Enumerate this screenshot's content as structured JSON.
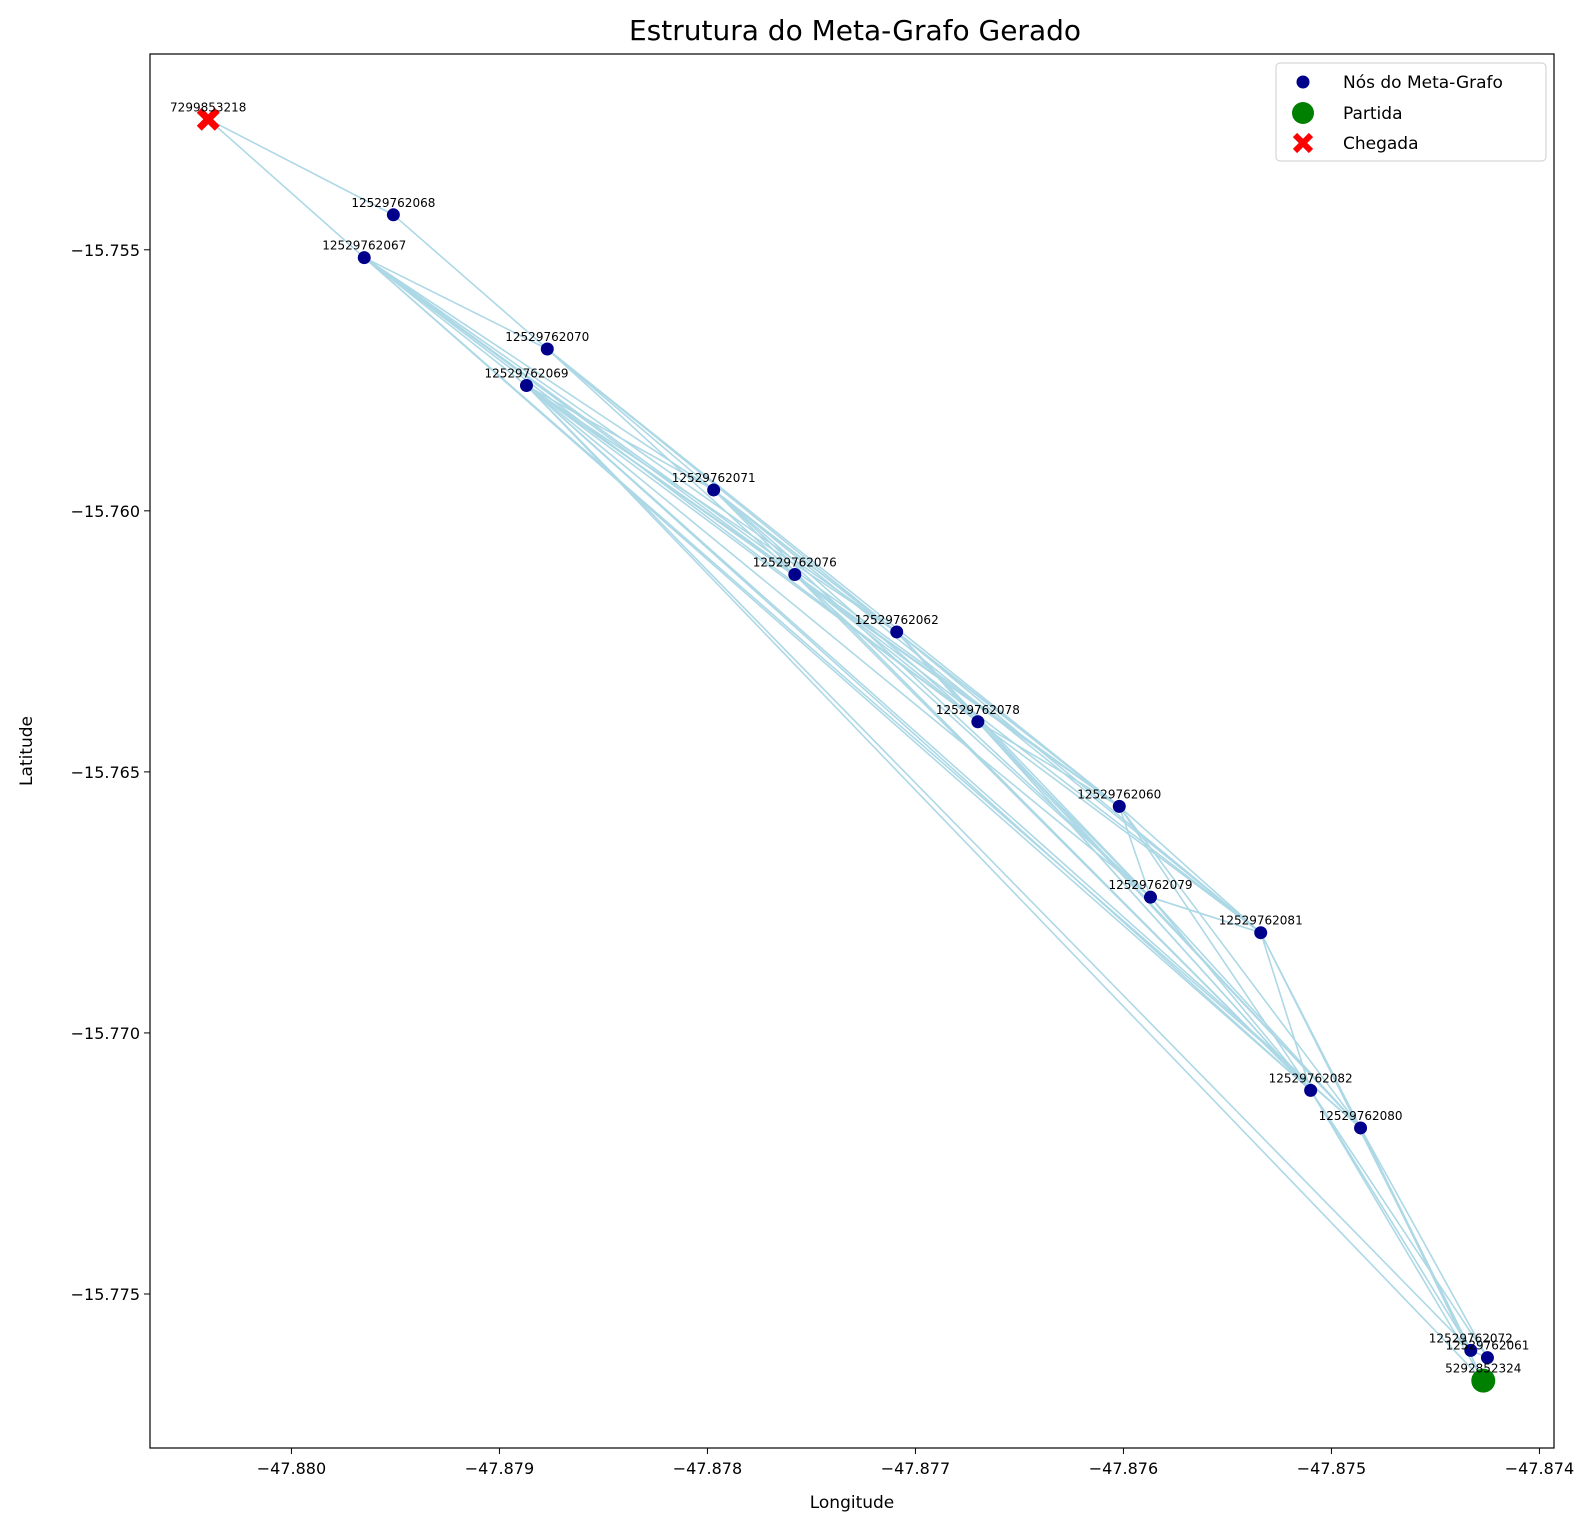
{
  "chart_data": {
    "type": "scatter",
    "title": "Estrutura do Meta-Grafo Gerado",
    "xlabel": "Longitude",
    "ylabel": "Latitude",
    "xlim": [
      -47.88068,
      -47.87393
    ],
    "ylim": [
      -15.77795,
      -15.75125
    ],
    "xticks": [
      -47.88,
      -47.879,
      -47.878,
      -47.877,
      -47.876,
      -47.875,
      -47.874
    ],
    "xtick_labels": [
      "−47.880",
      "−47.879",
      "−47.878",
      "−47.877",
      "−47.876",
      "−47.875",
      "−47.874"
    ],
    "yticks": [
      -15.755,
      -15.76,
      -15.765,
      -15.77,
      -15.775
    ],
    "ytick_labels": [
      "−15.755",
      "−15.760",
      "−15.765",
      "−15.770",
      "−15.775"
    ],
    "grid": false,
    "legend_position": "top-right",
    "colors": {
      "node": "#00008b",
      "edge": "#add8e6",
      "start": "#008000",
      "end": "#ff0000"
    },
    "legend": [
      {
        "label": "Nós do Meta-Grafo",
        "marker": "node-dot"
      },
      {
        "label": "Partida",
        "marker": "start-dot"
      },
      {
        "label": "Chegada",
        "marker": "end-cross"
      }
    ],
    "nodes": [
      {
        "id": "12529762068",
        "x": -47.87951,
        "y": -15.75433
      },
      {
        "id": "12529762067",
        "x": -47.87965,
        "y": -15.75515
      },
      {
        "id": "12529762070",
        "x": -47.87877,
        "y": -15.7569
      },
      {
        "id": "12529762069",
        "x": -47.87887,
        "y": -15.7576
      },
      {
        "id": "12529762071",
        "x": -47.87797,
        "y": -15.7596
      },
      {
        "id": "12529762076",
        "x": -47.87758,
        "y": -15.76122
      },
      {
        "id": "12529762062",
        "x": -47.87709,
        "y": -15.76232
      },
      {
        "id": "12529762078",
        "x": -47.8767,
        "y": -15.76404
      },
      {
        "id": "12529762060",
        "x": -47.87602,
        "y": -15.76566
      },
      {
        "id": "12529762079",
        "x": -47.87587,
        "y": -15.7674
      },
      {
        "id": "12529762081",
        "x": -47.87534,
        "y": -15.76808
      },
      {
        "id": "12529762082",
        "x": -47.8751,
        "y": -15.7711
      },
      {
        "id": "12529762080",
        "x": -47.87486,
        "y": -15.77182
      },
      {
        "id": "12529762072",
        "x": -47.87433,
        "y": -15.77608
      },
      {
        "id": "12529762061",
        "x": -47.87425,
        "y": -15.77622
      }
    ],
    "start": {
      "id": "5292852324",
      "x": -47.87427,
      "y": -15.77666
    },
    "end": {
      "id": "7299853218",
      "x": -47.8804,
      "y": -15.7525
    },
    "edges": [
      [
        "7299853218",
        "12529762068"
      ],
      [
        "7299853218",
        "12529762067"
      ],
      [
        "12529762068",
        "12529762070"
      ],
      [
        "12529762067",
        "12529762070"
      ],
      [
        "12529762067",
        "12529762069"
      ],
      [
        "12529762067",
        "12529762071"
      ],
      [
        "12529762067",
        "12529762076"
      ],
      [
        "12529762067",
        "12529762062"
      ],
      [
        "12529762067",
        "12529762078"
      ],
      [
        "12529762067",
        "12529762060"
      ],
      [
        "12529762067",
        "12529762082"
      ],
      [
        "12529762067",
        "12529762080"
      ],
      [
        "12529762070",
        "12529762071"
      ],
      [
        "12529762070",
        "12529762076"
      ],
      [
        "12529762070",
        "12529762062"
      ],
      [
        "12529762070",
        "12529762060"
      ],
      [
        "12529762069",
        "12529762071"
      ],
      [
        "12529762069",
        "12529762076"
      ],
      [
        "12529762069",
        "12529762062"
      ],
      [
        "12529762069",
        "12529762078"
      ],
      [
        "12529762069",
        "12529762060"
      ],
      [
        "12529762069",
        "12529762079"
      ],
      [
        "12529762069",
        "12529762082"
      ],
      [
        "12529762069",
        "12529762080"
      ],
      [
        "12529762069",
        "12529762072"
      ],
      [
        "12529762069",
        "5292852324"
      ],
      [
        "12529762071",
        "12529762062"
      ],
      [
        "12529762071",
        "12529762078"
      ],
      [
        "12529762071",
        "12529762060"
      ],
      [
        "12529762071",
        "12529762081"
      ],
      [
        "12529762071",
        "12529762079"
      ],
      [
        "12529762071",
        "12529762082"
      ],
      [
        "12529762076",
        "12529762078"
      ],
      [
        "12529762076",
        "12529762060"
      ],
      [
        "12529762076",
        "12529762079"
      ],
      [
        "12529762076",
        "12529762081"
      ],
      [
        "12529762076",
        "12529762082"
      ],
      [
        "12529762062",
        "12529762060"
      ],
      [
        "12529762062",
        "12529762079"
      ],
      [
        "12529762062",
        "12529762081"
      ],
      [
        "12529762062",
        "12529762082"
      ],
      [
        "12529762062",
        "12529762080"
      ],
      [
        "12529762078",
        "12529762060"
      ],
      [
        "12529762078",
        "12529762079"
      ],
      [
        "12529762078",
        "12529762081"
      ],
      [
        "12529762078",
        "12529762082"
      ],
      [
        "12529762078",
        "12529762080"
      ],
      [
        "12529762060",
        "12529762079"
      ],
      [
        "12529762060",
        "12529762081"
      ],
      [
        "12529762060",
        "12529762082"
      ],
      [
        "12529762060",
        "12529762080"
      ],
      [
        "12529762079",
        "12529762081"
      ],
      [
        "12529762079",
        "12529762082"
      ],
      [
        "12529762079",
        "12529762080"
      ],
      [
        "12529762081",
        "12529762082"
      ],
      [
        "12529762081",
        "12529762080"
      ],
      [
        "12529762082",
        "12529762072"
      ],
      [
        "12529762082",
        "12529762061"
      ],
      [
        "12529762082",
        "5292852324"
      ],
      [
        "12529762080",
        "12529762072"
      ],
      [
        "12529762080",
        "12529762061"
      ],
      [
        "12529762080",
        "5292852324"
      ],
      [
        "12529762081",
        "12529762072"
      ],
      [
        "12529762072",
        "12529762061"
      ]
    ]
  }
}
